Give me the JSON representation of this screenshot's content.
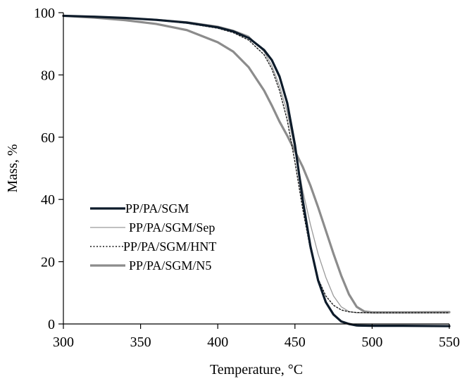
{
  "chart_data": {
    "type": "line",
    "title": "",
    "xlabel": "Temperature, °C",
    "ylabel": "Mass, %",
    "xlim": [
      300,
      550
    ],
    "ylim": [
      0,
      100
    ],
    "xticks": [
      300,
      350,
      400,
      450,
      500,
      550
    ],
    "yticks": [
      0,
      20,
      40,
      60,
      80,
      100
    ],
    "grid": false,
    "legend_position": "lower-left",
    "series": [
      {
        "name": "PP/PA/SGM",
        "color": "#0d1b2a",
        "style": "solid-thick",
        "x": [
          300,
          320,
          340,
          360,
          380,
          400,
          410,
          420,
          430,
          435,
          440,
          445,
          450,
          455,
          460,
          465,
          470,
          475,
          480,
          485,
          490,
          500,
          520,
          550
        ],
        "y": [
          99,
          98.7,
          98.3,
          97.7,
          96.8,
          95.3,
          94,
          91.9,
          88,
          84.8,
          79.5,
          71,
          57.5,
          40,
          25,
          14,
          7,
          3,
          0.8,
          0,
          -0.5,
          -0.6,
          -0.6,
          -0.7
        ]
      },
      {
        "name": "PP/PA/SGM/Sep",
        "color": "#9a9a9a",
        "style": "solid-thin",
        "x": [
          300,
          320,
          340,
          360,
          380,
          400,
          410,
          420,
          430,
          435,
          440,
          445,
          450,
          455,
          460,
          465,
          470,
          475,
          480,
          485,
          490,
          500,
          520,
          550
        ],
        "y": [
          99,
          98.8,
          98.4,
          97.9,
          97.1,
          95.7,
          94.4,
          92.5,
          87.5,
          83,
          76.5,
          68,
          56,
          43,
          32,
          22.5,
          15,
          9,
          5.5,
          4,
          3.6,
          3.5,
          3.5,
          3.5
        ]
      },
      {
        "name": "PP/PA/SGM/HNT",
        "color": "#1a1a1a",
        "style": "dotted",
        "x": [
          300,
          320,
          340,
          360,
          380,
          400,
          410,
          420,
          430,
          435,
          440,
          445,
          450,
          455,
          460,
          465,
          470,
          475,
          480,
          485,
          490,
          500,
          520,
          550
        ],
        "y": [
          99,
          98.6,
          98.2,
          97.6,
          96.6,
          95,
          93.6,
          91.2,
          86.5,
          82,
          75,
          65.5,
          52,
          37,
          24,
          14.5,
          9,
          6,
          4.5,
          3.9,
          3.7,
          3.6,
          3.6,
          3.6
        ]
      },
      {
        "name": "PP/PA/SGM/N5",
        "color": "#8c8c8c",
        "style": "solid-thick",
        "x": [
          300,
          320,
          340,
          360,
          380,
          400,
          410,
          420,
          430,
          435,
          440,
          445,
          450,
          455,
          460,
          465,
          470,
          475,
          480,
          485,
          490,
          495,
          500,
          520,
          550
        ],
        "y": [
          99,
          98.4,
          97.6,
          96.4,
          94.4,
          90.5,
          87.5,
          82.5,
          75,
          70.2,
          65,
          60.5,
          55.5,
          50.5,
          44.5,
          37.5,
          30,
          22.5,
          15.5,
          9.5,
          5.5,
          4,
          3.7,
          3.7,
          3.8
        ]
      }
    ]
  }
}
